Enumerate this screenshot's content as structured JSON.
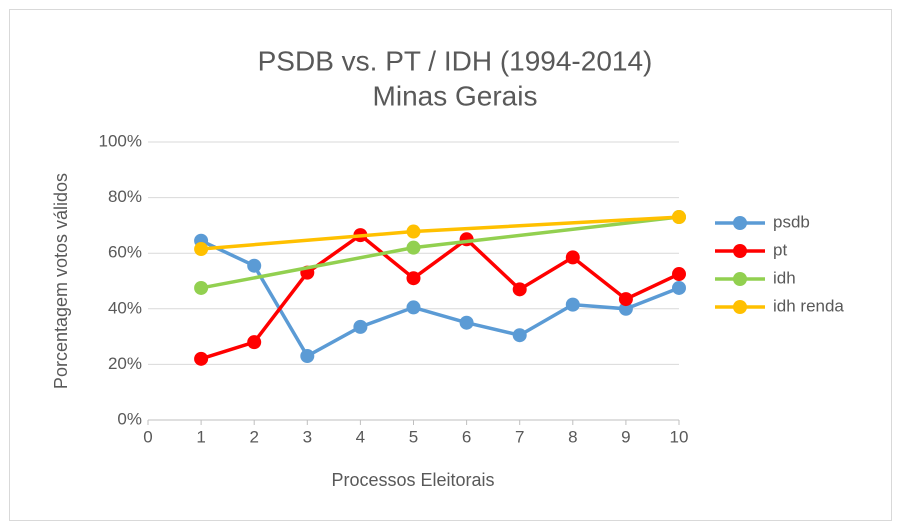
{
  "chart_data": {
    "type": "line",
    "title": "PSDB vs. PT / IDH (1994-2014)",
    "subtitle": "Minas Gerais",
    "x_label": "Processos Eleitorais",
    "y_label": "Porcentagem votos válidos",
    "xlim": [
      0,
      10
    ],
    "xticks": [
      0,
      1,
      2,
      3,
      4,
      5,
      6,
      7,
      8,
      9,
      10
    ],
    "ylim": [
      0,
      100
    ],
    "yticks": [
      {
        "value": 0,
        "label": "0%"
      },
      {
        "value": 20,
        "label": "20%"
      },
      {
        "value": 40,
        "label": "40%"
      },
      {
        "value": 60,
        "label": "60%"
      },
      {
        "value": 80,
        "label": "80%"
      },
      {
        "value": 100,
        "label": "100%"
      }
    ],
    "grid": true,
    "legend": "right",
    "series": [
      {
        "name": "psdb",
        "color": "#5b9bd5",
        "x": [
          1,
          2,
          3,
          4,
          5,
          6,
          7,
          8,
          9,
          10
        ],
        "values": [
          64.5,
          55.5,
          23,
          33.5,
          40.5,
          35,
          30.5,
          41.5,
          40,
          47.5
        ]
      },
      {
        "name": "pt",
        "color": "#ff0000",
        "x": [
          1,
          2,
          3,
          4,
          5,
          6,
          7,
          8,
          9,
          10
        ],
        "values": [
          22,
          28,
          53,
          66.5,
          51,
          65,
          47,
          58.5,
          43.5,
          52.5
        ]
      },
      {
        "name": "idh",
        "color": "#92d050",
        "x": [
          1,
          5,
          10
        ],
        "values": [
          47.5,
          62,
          73
        ]
      },
      {
        "name": "idh renda",
        "color": "#ffc000",
        "x": [
          1,
          5,
          10
        ],
        "values": [
          61.5,
          67.8,
          73
        ]
      }
    ]
  }
}
